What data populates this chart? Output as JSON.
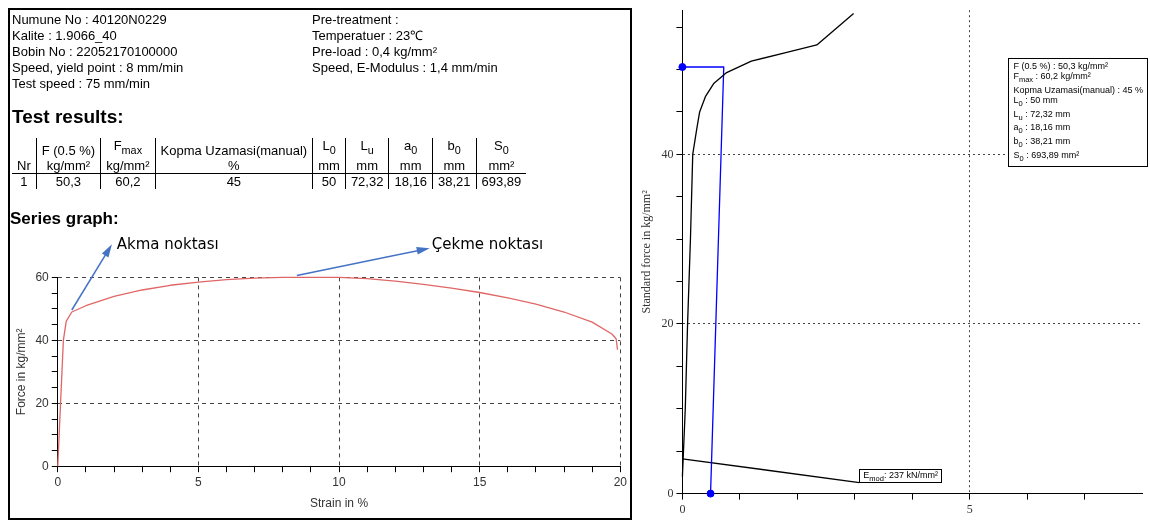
{
  "chart_data": [
    {
      "type": "other",
      "title": "Test results:",
      "annotations": [
        "Numune No : 40120N0229",
        "Pre-treatment :",
        "Kalite : 1.9066_40",
        "Temperatuer : 23℃",
        "Bobin No : 22052170100000",
        "Pre-load : 0,4 kg/mm²",
        "Speed, yield point : 8 mm/min",
        "Speed, E-Modulus : 1,4 mm/min",
        "Test speed : 75 mm/min"
      ],
      "categories": [
        "Nr",
        "F (0.5 %)\nkg/mm²",
        "F$_{max}$\nkg/mm²",
        "Kopma Uzamasi(manual)\n%",
        "L$_{0}$\nmm",
        "L$_{u}$\nmm",
        "a$_{0}$\nmm",
        "b$_{0}$\nmm",
        "S$_{0}$\nmm²"
      ],
      "value_labels": [
        "1",
        "50,3",
        "60,2",
        "45",
        "50",
        "72,32",
        "18,16",
        "38,21",
        "693,89"
      ]
    },
    {
      "type": "line",
      "title": "Series graph:",
      "xlabel": "Strain in %",
      "ylabel": "Force in kg/mm²",
      "xlim": [
        0,
        20
      ],
      "xticks": [
        0,
        {
          "value": 1,
          "label": null
        },
        {
          "value": 2,
          "label": null
        },
        {
          "value": 3,
          "label": null
        },
        {
          "value": 4,
          "label": null
        },
        5,
        {
          "value": 6,
          "label": null
        },
        {
          "value": 7,
          "label": null
        },
        {
          "value": 8,
          "label": null
        },
        {
          "value": 9,
          "label": null
        },
        10,
        {
          "value": 11,
          "label": null
        },
        {
          "value": 12,
          "label": null
        },
        {
          "value": 13,
          "label": null
        },
        {
          "value": 14,
          "label": null
        },
        15,
        {
          "value": 16,
          "label": null
        },
        {
          "value": 17,
          "label": null
        },
        {
          "value": 18,
          "label": null
        },
        {
          "value": 19,
          "label": null
        },
        20
      ],
      "ylim": [
        0,
        60
      ],
      "yticks": [
        0,
        {
          "value": 5,
          "label": null
        },
        {
          "value": 10,
          "label": null
        },
        {
          "value": 15,
          "label": null
        },
        20,
        {
          "value": 25,
          "label": null
        },
        {
          "value": 30,
          "label": null
        },
        {
          "value": 35,
          "label": null
        },
        40,
        {
          "value": 45,
          "label": null
        },
        {
          "value": 50,
          "label": null
        },
        {
          "value": 55,
          "label": null
        },
        60
      ],
      "grid": true,
      "annotations": [
        {
          "text": "Akma noktası",
          "x": 0.5,
          "y": 49
        },
        {
          "text": "Çekme noktası",
          "x": 8.5,
          "y": 60
        }
      ],
      "series": [
        {
          "color": "#e06666",
          "x": [
            0,
            0.1,
            0.2,
            0.3,
            0.5,
            1,
            2,
            3,
            4,
            5,
            6,
            7,
            8,
            9,
            10,
            11,
            12,
            13,
            14,
            15,
            16,
            17,
            18,
            19,
            19.7,
            19.85,
            19.9
          ],
          "values": [
            0,
            20,
            40,
            46,
            49,
            51,
            54,
            56,
            57.5,
            58.5,
            59.3,
            59.8,
            60,
            60,
            60,
            59.6,
            58.8,
            57.8,
            56.6,
            55.2,
            53.5,
            51.5,
            49,
            45.8,
            42,
            40.5,
            37
          ]
        }
      ]
    },
    {
      "type": "line",
      "ylabel": "Standard force in kg/mm²",
      "xlim": [
        0,
        8
      ],
      "xticks": [
        0,
        {
          "value": 1,
          "label": null
        },
        {
          "value": 2,
          "label": null
        },
        {
          "value": 3,
          "label": null
        },
        {
          "value": 4,
          "label": null
        },
        5,
        {
          "value": 6,
          "label": null
        },
        {
          "value": 7,
          "label": null
        }
      ],
      "ylim": [
        0,
        57
      ],
      "yticks": [
        0,
        {
          "value": 5,
          "label": null
        },
        {
          "value": 10,
          "label": null
        },
        {
          "value": 15,
          "label": null
        },
        20,
        {
          "value": 25,
          "label": null
        },
        {
          "value": 30,
          "label": null
        },
        {
          "value": 35,
          "label": null
        },
        40,
        {
          "value": 45,
          "label": null
        },
        {
          "value": 50,
          "label": null
        },
        {
          "value": 55,
          "label": null
        }
      ],
      "grid": true,
      "annotations": [
        "F (0.5 %) : 50,3 kg/mm²",
        "F$_{max}$ : 60,2 kg/mm²",
        "Kopma Uzamasi(manual) : 45 %",
        "L$_{0}$ : 50 mm",
        "L$_{u}$ : 72,32 mm",
        "a$_{0}$ : 18,16 mm",
        "b$_{0}$ : 38,21 mm",
        "S$_{0}$ : 693,89 mm²",
        {
          "text": "E$_{mod}$: 237 kN/mm²",
          "x": 3.08,
          "y": 1.3
        }
      ],
      "series": [
        {
          "color": "#000000",
          "x": [
            0,
            0.05,
            0.09,
            0.14,
            0.18,
            0.25,
            0.3,
            0.4,
            0.55,
            0.76,
            1.2,
            1.8,
            2.34,
            2.98
          ],
          "values": [
            2,
            10,
            20,
            30,
            40,
            43,
            45,
            46.8,
            48.4,
            49.6,
            51,
            52,
            52.9,
            56.6
          ]
        },
        {
          "color": "#0000ff",
          "x": [
            0,
            0.72,
            0.49
          ],
          "values": [
            50.3,
            50.3,
            0
          ]
        },
        {
          "color": "#000000",
          "x": [
            0,
            3.08
          ],
          "values": [
            4.1,
            1.3
          ]
        },
        {
          "type": "scatter",
          "color": "#0000ff",
          "x": [
            0,
            0.49
          ],
          "values": [
            50.3,
            0
          ]
        }
      ]
    }
  ]
}
